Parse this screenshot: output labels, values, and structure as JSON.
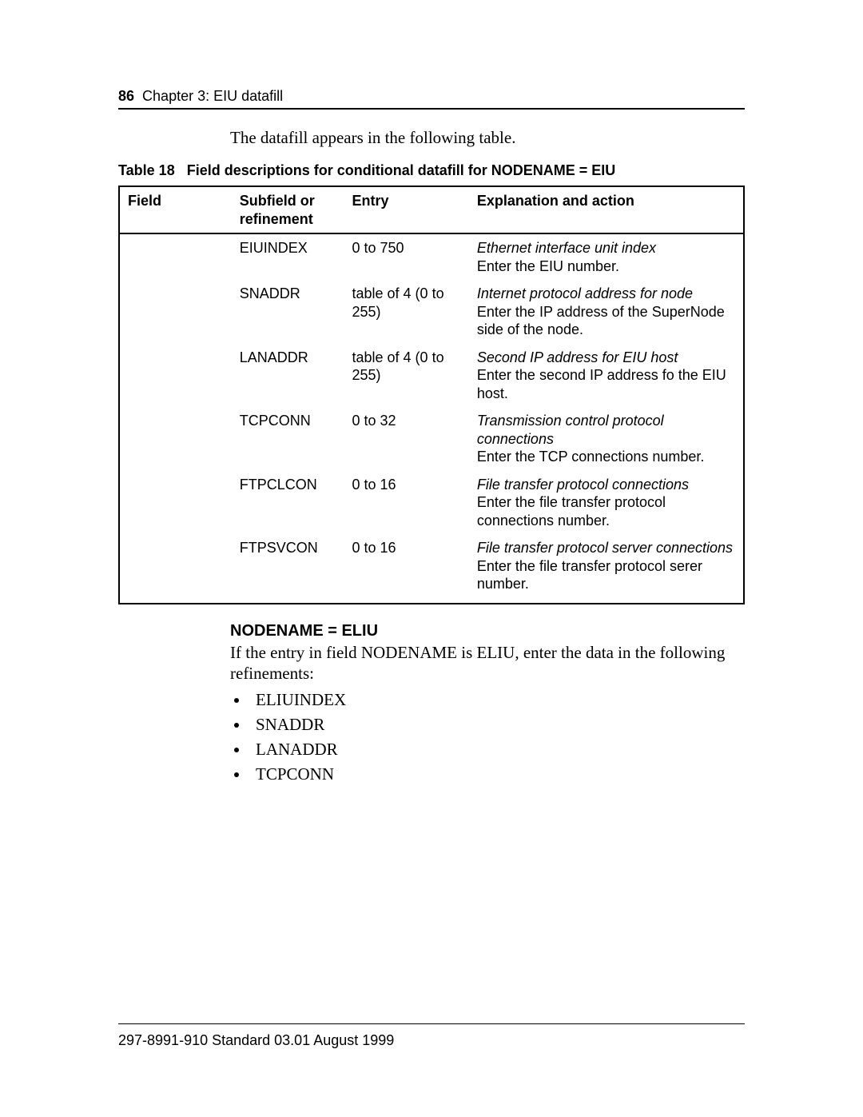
{
  "header": {
    "page_number": "86",
    "chapter": "Chapter 3: EIU datafill"
  },
  "intro_text": "The datafill appears in the following table.",
  "table": {
    "caption_prefix": "Table 18",
    "caption_text": "Field descriptions for conditional datafill for NODENAME = EIU",
    "columns": {
      "field": "Field",
      "subfield": "Subfield or refinement",
      "entry": "Entry",
      "explanation": "Explanation and action"
    },
    "rows": [
      {
        "field": "",
        "subfield": "EIUINDEX",
        "entry": "0 to 750",
        "exp_title": "Ethernet interface unit index",
        "exp_action": "Enter the EIU number."
      },
      {
        "field": "",
        "subfield": "SNADDR",
        "entry": "table of 4 (0 to 255)",
        "exp_title": "Internet protocol address for node",
        "exp_action": "Enter the IP address of the SuperNode side of the node."
      },
      {
        "field": "",
        "subfield": "LANADDR",
        "entry": "table of 4 (0 to 255)",
        "exp_title": "Second IP address for EIU host",
        "exp_action": "Enter the second IP address fo the EIU host."
      },
      {
        "field": "",
        "subfield": "TCPCONN",
        "entry": "0 to 32",
        "exp_title": "Transmission control protocol connections",
        "exp_action": "Enter the TCP connections number."
      },
      {
        "field": "",
        "subfield": "FTPCLCON",
        "entry": "0 to 16",
        "exp_title": "File transfer protocol connections",
        "exp_action": "Enter the file transfer protocol connections number."
      },
      {
        "field": "",
        "subfield": "FTPSVCON",
        "entry": "0 to 16",
        "exp_title": "File transfer protocol server connections",
        "exp_action": "Enter the file transfer protocol serer number."
      }
    ]
  },
  "section": {
    "heading": "NODENAME = ELIU",
    "para": "If the entry in field NODENAME is ELIU,  enter the data in the following refinements:",
    "bullets": [
      "ELIUINDEX",
      "SNADDR",
      "LANADDR",
      "TCPCONN"
    ]
  },
  "footer": {
    "text": "297-8991-910  Standard  03.01  August 1999"
  }
}
